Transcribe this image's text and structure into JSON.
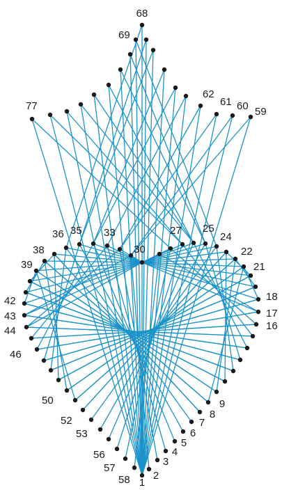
{
  "diagram": {
    "type": "string-art",
    "description_kind": "heart with flame",
    "line_color": "#1b93c9",
    "dot_color": "#1a1a1a",
    "visible_labels": [
      "1",
      "2",
      "3",
      "4",
      "5",
      "6",
      "7",
      "8",
      "9",
      "16",
      "17",
      "18",
      "21",
      "22",
      "24",
      "25",
      "27",
      "30",
      "33",
      "35",
      "36",
      "38",
      "39",
      "42",
      "43",
      "44",
      "46",
      "50",
      "52",
      "53",
      "56",
      "57",
      "58",
      "59",
      "60",
      "61",
      "62",
      "68",
      "69",
      "77"
    ]
  }
}
